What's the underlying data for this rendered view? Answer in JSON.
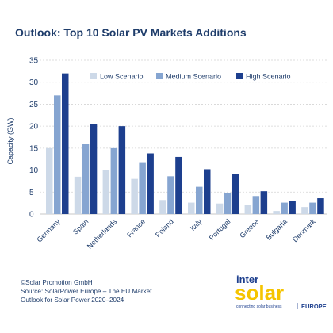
{
  "title": "Outlook: Top 10 Solar PV Markets Additions",
  "chart_data": {
    "type": "bar",
    "ylabel": "Capacity (GW)",
    "ylim": [
      0,
      35
    ],
    "yticks": [
      0,
      5,
      10,
      15,
      20,
      25,
      30,
      35
    ],
    "grid": "horizontal",
    "legend_position": "top-right",
    "categories": [
      "Germany",
      "Spain",
      "Netherlands",
      "France",
      "Poland",
      "Italy",
      "Portugal",
      "Greece",
      "Bulgaria",
      "Denmark"
    ],
    "series": [
      {
        "name": "Low Scenario",
        "color": "#cdd9e8",
        "values": [
          15,
          8.5,
          10,
          8,
          3.2,
          2.6,
          2.4,
          2.0,
          0.7,
          1.6
        ]
      },
      {
        "name": "Medium Scenario",
        "color": "#86a5d1",
        "values": [
          27,
          16,
          15,
          11.8,
          8.6,
          6.2,
          4.8,
          4.1,
          2.6,
          2.6
        ]
      },
      {
        "name": "High Scenario",
        "color": "#1d3f8e",
        "values": [
          32,
          20.5,
          20,
          13.8,
          13,
          10.2,
          9.2,
          5.2,
          3.0,
          3.6
        ]
      }
    ]
  },
  "footer": {
    "line1": "©Solar Promotion GmbH",
    "line2": "Source: SolarPower Europe – The EU Market",
    "line3": "Outlook for Solar Power 2020–2024"
  },
  "logo": {
    "word1": "inter",
    "word2": "solar",
    "tagline": "connecting solar business",
    "region": "EUROPE",
    "color_primary": "#1d3f8e",
    "color_accent": "#f5c400"
  }
}
